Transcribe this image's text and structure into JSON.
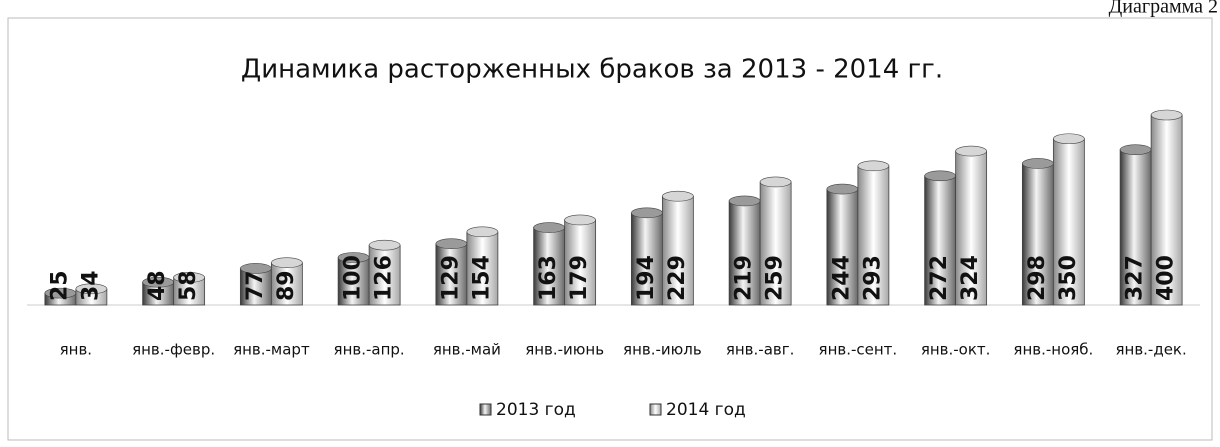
{
  "chart_data": {
    "type": "bar",
    "title": "Динамика расторженных браков за 2013 - 2014 гг.",
    "annotation": "Диаграмма 2",
    "categories": [
      "янв.",
      "янв.-февр.",
      "янв.-март",
      "янв.-апр.",
      "янв.-май",
      "янв.-июнь",
      "янв.-июль",
      "янв.-авг.",
      "янв.-сент.",
      "янв.-окт.",
      "янв.-нояб.",
      "янв.-дек."
    ],
    "series": [
      {
        "name": "2013 год",
        "color": "#9a9a9a",
        "values": [
          25,
          48,
          77,
          100,
          129,
          163,
          194,
          219,
          244,
          272,
          298,
          327
        ]
      },
      {
        "name": "2014 год",
        "color": "#d6d6d6",
        "values": [
          34,
          58,
          89,
          126,
          154,
          179,
          229,
          259,
          293,
          324,
          350,
          400
        ]
      }
    ],
    "legend": "bottom"
  }
}
